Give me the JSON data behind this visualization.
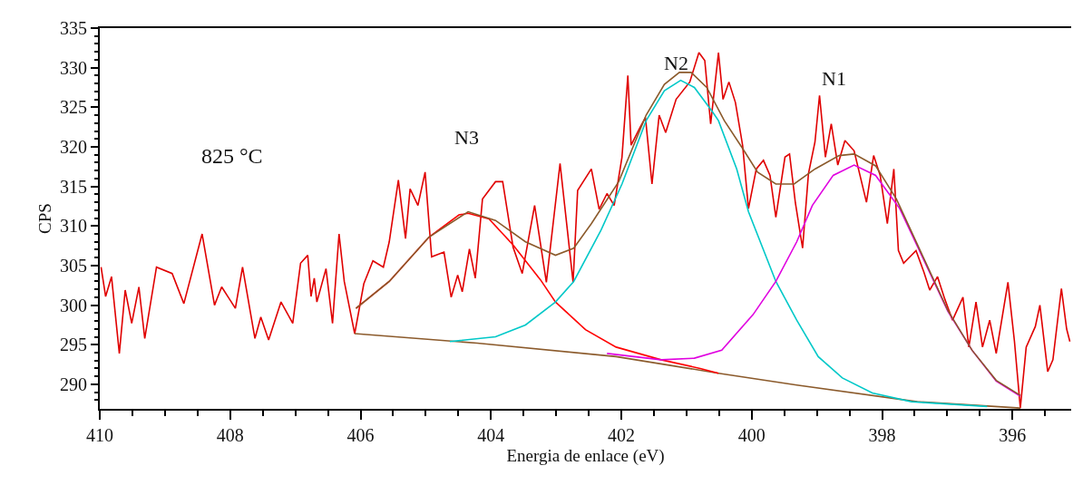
{
  "chart_data": {
    "type": "line",
    "xlabel": "Energia de enlace (eV)",
    "ylabel": "CPS",
    "xlim": [
      410,
      395.1
    ],
    "ylim": [
      286.9,
      335
    ],
    "xticks": [
      410,
      408,
      406,
      404,
      402,
      400,
      398,
      396,
      {
        "value": 409.5,
        "label": null
      },
      {
        "value": 409,
        "label": null
      },
      {
        "value": 408.5,
        "label": null
      },
      {
        "value": 407.5,
        "label": null
      },
      {
        "value": 407,
        "label": null
      },
      {
        "value": 406.5,
        "label": null
      },
      {
        "value": 405.5,
        "label": null
      },
      {
        "value": 405,
        "label": null
      },
      {
        "value": 404.5,
        "label": null
      },
      {
        "value": 403.5,
        "label": null
      },
      {
        "value": 403,
        "label": null
      },
      {
        "value": 402.5,
        "label": null
      },
      {
        "value": 401.5,
        "label": null
      },
      {
        "value": 401,
        "label": null
      },
      {
        "value": 400.5,
        "label": null
      },
      {
        "value": 399.5,
        "label": null
      },
      {
        "value": 399,
        "label": null
      },
      {
        "value": 398.5,
        "label": null
      },
      {
        "value": 397.5,
        "label": null
      },
      {
        "value": 397,
        "label": null
      },
      {
        "value": 396.5,
        "label": null
      },
      {
        "value": 395.5,
        "label": null
      }
    ],
    "yticks": [
      290,
      295,
      300,
      305,
      310,
      315,
      320,
      325,
      330,
      335,
      {
        "value": 288,
        "label": null
      },
      {
        "value": 289,
        "label": null
      },
      {
        "value": 291,
        "label": null
      },
      {
        "value": 292,
        "label": null
      },
      {
        "value": 293,
        "label": null
      },
      {
        "value": 294,
        "label": null
      },
      {
        "value": 296,
        "label": null
      },
      {
        "value": 297,
        "label": null
      },
      {
        "value": 298,
        "label": null
      },
      {
        "value": 299,
        "label": null
      },
      {
        "value": 301,
        "label": null
      },
      {
        "value": 302,
        "label": null
      },
      {
        "value": 303,
        "label": null
      },
      {
        "value": 304,
        "label": null
      },
      {
        "value": 306,
        "label": null
      },
      {
        "value": 307,
        "label": null
      },
      {
        "value": 308,
        "label": null
      },
      {
        "value": 309,
        "label": null
      },
      {
        "value": 311,
        "label": null
      },
      {
        "value": 312,
        "label": null
      },
      {
        "value": 313,
        "label": null
      },
      {
        "value": 314,
        "label": null
      },
      {
        "value": 316,
        "label": null
      },
      {
        "value": 317,
        "label": null
      },
      {
        "value": 318,
        "label": null
      },
      {
        "value": 319,
        "label": null
      },
      {
        "value": 321,
        "label": null
      },
      {
        "value": 322,
        "label": null
      },
      {
        "value": 323,
        "label": null
      },
      {
        "value": 324,
        "label": null
      },
      {
        "value": 326,
        "label": null
      },
      {
        "value": 327,
        "label": null
      },
      {
        "value": 328,
        "label": null
      },
      {
        "value": 329,
        "label": null
      },
      {
        "value": 331,
        "label": null
      },
      {
        "value": 332,
        "label": null
      },
      {
        "value": 333,
        "label": null
      },
      {
        "value": 334,
        "label": null
      }
    ],
    "marker": "none",
    "line_style": "solid",
    "series": [
      {
        "color": "#e00000",
        "x": [
          409.98,
          409.91,
          409.82,
          409.7,
          409.61,
          409.51,
          409.4,
          409.31,
          409.13,
          408.89,
          408.71,
          408.43,
          408.24,
          408.13,
          407.92,
          407.81,
          407.62,
          407.53,
          407.41,
          407.22,
          407.04,
          406.92,
          406.81,
          406.76,
          406.71,
          406.67,
          406.53,
          406.43,
          406.33,
          406.25,
          406.09,
          405.95,
          405.81,
          405.65,
          405.56,
          405.42,
          405.31,
          405.24,
          405.12,
          405.01,
          404.91,
          404.72,
          404.61,
          404.51,
          404.44,
          404.33,
          404.24,
          404.13,
          403.93,
          403.82,
          403.66,
          403.52,
          403.33,
          403.15,
          402.94,
          402.74,
          402.67,
          402.46,
          402.34,
          402.22,
          402.11,
          401.99,
          401.9,
          401.85,
          401.71,
          401.63,
          401.53,
          401.42,
          401.32,
          401.16,
          400.95,
          400.81,
          400.72,
          400.63,
          400.51,
          400.44,
          400.35,
          400.25,
          400.14,
          400.05,
          399.93,
          399.82,
          399.72,
          399.63,
          399.49,
          399.42,
          399.33,
          399.22,
          399.13,
          399.03,
          398.96,
          398.87,
          398.78,
          398.68,
          398.57,
          398.43,
          398.24,
          398.13,
          398.03,
          397.92,
          397.82,
          397.75,
          397.67,
          397.48,
          397.36,
          397.27,
          397.15,
          397.04,
          396.92,
          396.76,
          396.67,
          396.56,
          396.46,
          396.35,
          396.25,
          396.07,
          395.97,
          395.88,
          395.79,
          395.65,
          395.58,
          395.46,
          395.38,
          395.25,
          395.17,
          395.12
        ],
        "values": [
          304.8,
          301.1,
          303.6,
          293.9,
          301.9,
          297.7,
          302.3,
          295.8,
          304.8,
          304.0,
          300.2,
          309.0,
          300.0,
          302.3,
          299.6,
          304.8,
          295.8,
          298.5,
          295.6,
          300.4,
          297.7,
          305.3,
          306.3,
          301.1,
          303.4,
          300.4,
          304.6,
          297.7,
          309.0,
          303.0,
          296.4,
          302.7,
          305.6,
          304.8,
          308.0,
          315.8,
          308.4,
          314.7,
          312.6,
          316.8,
          306.1,
          306.7,
          301.0,
          303.8,
          301.7,
          307.1,
          303.4,
          313.4,
          315.6,
          315.6,
          307.3,
          304.0,
          312.6,
          302.9,
          317.9,
          302.9,
          314.5,
          317.2,
          312.1,
          314.1,
          312.6,
          318.7,
          329.0,
          320.2,
          322.5,
          323.7,
          315.3,
          324.0,
          321.8,
          326.0,
          328.2,
          331.9,
          330.9,
          322.9,
          331.9,
          326.0,
          328.2,
          325.6,
          320.2,
          312.2,
          317.2,
          318.3,
          316.4,
          311.1,
          318.7,
          319.1,
          312.9,
          307.2,
          316.6,
          320.6,
          326.5,
          318.7,
          322.9,
          317.7,
          320.8,
          319.5,
          313.0,
          318.9,
          316.4,
          310.3,
          317.2,
          306.9,
          305.3,
          306.9,
          304.2,
          301.9,
          303.6,
          300.8,
          298.1,
          301.0,
          294.7,
          300.4,
          294.7,
          298.1,
          293.9,
          302.9,
          295.4,
          287.0,
          294.7,
          297.3,
          300.0,
          291.6,
          293.1,
          302.1,
          297.0,
          295.4
        ]
      },
      {
        "color": "#8b5a2b",
        "x": [
          406.09,
          404.21,
          402.08,
          400.51,
          399.31,
          397.46,
          395.88
        ],
        "values": [
          296.4,
          295.2,
          293.5,
          291.4,
          289.9,
          287.8,
          287.0
        ]
      },
      {
        "color": "#ff0000",
        "x": [
          406.07,
          405.56,
          404.95,
          404.49,
          404.35,
          404.03,
          403.66,
          403.24,
          403.01,
          402.55,
          402.08,
          401.39,
          400.79,
          400.51
        ],
        "values": [
          299.6,
          303.0,
          308.6,
          311.4,
          311.6,
          310.9,
          307.6,
          303.2,
          300.4,
          296.9,
          294.7,
          293.1,
          292.0,
          291.4
        ]
      },
      {
        "color": "#00c8c8",
        "x": [
          404.63,
          403.93,
          403.47,
          403.01,
          402.73,
          402.31,
          401.99,
          401.62,
          401.34,
          401.09,
          400.88,
          400.6,
          400.51,
          400.23,
          400.05,
          399.63,
          399.31,
          398.98,
          398.61,
          398.15,
          397.55,
          396.39
        ],
        "values": [
          295.4,
          296.0,
          297.5,
          300.4,
          303.0,
          309.5,
          315.3,
          323.3,
          327.1,
          328.4,
          327.5,
          324.4,
          323.3,
          317.2,
          311.8,
          303.0,
          298.1,
          293.5,
          290.8,
          288.9,
          287.8,
          287.2
        ]
      },
      {
        "color": "#e000e0",
        "x": [
          402.22,
          401.39,
          400.88,
          400.46,
          399.98,
          399.63,
          399.31,
          399.07,
          398.75,
          398.43,
          398.1,
          397.73,
          397.36,
          396.99,
          396.62,
          396.25,
          395.88
        ],
        "values": [
          293.9,
          293.1,
          293.3,
          294.3,
          298.8,
          303.0,
          308.0,
          312.6,
          316.4,
          317.7,
          316.4,
          312.2,
          305.7,
          299.2,
          294.3,
          290.4,
          288.5
        ]
      },
      {
        "color": "#8b5a2b",
        "x": [
          406.07,
          405.56,
          404.95,
          404.35,
          403.93,
          403.47,
          403.01,
          402.73,
          402.46,
          402.04,
          401.62,
          401.34,
          401.11,
          400.93,
          400.69,
          400.42,
          400.14,
          399.91,
          399.63,
          399.35,
          399.03,
          398.66,
          398.43,
          398.1,
          397.78,
          397.36,
          396.99,
          396.62,
          396.25,
          395.88
        ],
        "values": [
          299.6,
          303.0,
          308.6,
          311.8,
          310.7,
          308.0,
          306.3,
          307.2,
          310.3,
          315.6,
          324.0,
          327.9,
          329.4,
          329.4,
          327.5,
          323.3,
          319.8,
          316.8,
          315.3,
          315.3,
          317.2,
          318.9,
          319.1,
          317.6,
          313.4,
          305.9,
          299.3,
          294.3,
          290.5,
          288.6
        ]
      }
    ],
    "annotations": [
      "825 °C",
      "N3",
      "N2",
      "N1"
    ]
  }
}
